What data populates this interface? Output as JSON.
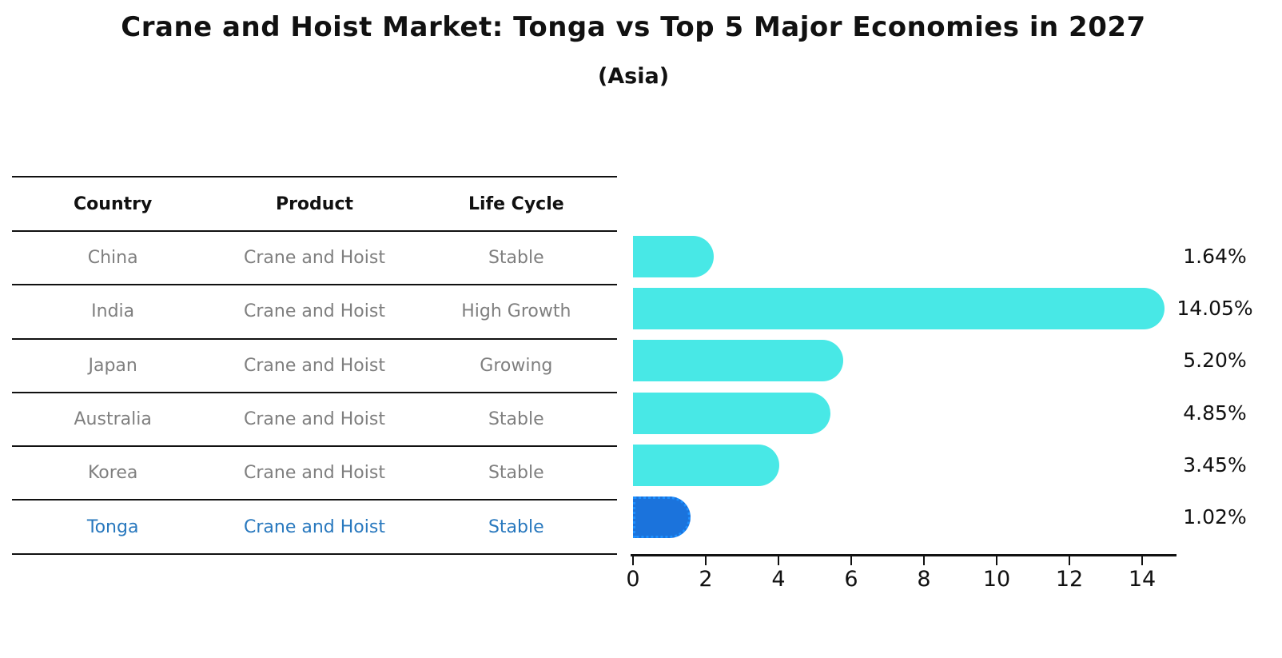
{
  "title": "Crane and Hoist Market: Tonga vs Top 5 Major Economies in 2027",
  "subtitle": "(Asia)",
  "table": {
    "headers": [
      "Country",
      "Product",
      "Life Cycle"
    ],
    "rows": [
      {
        "country": "China",
        "product": "Crane and Hoist",
        "life_cycle": "Stable",
        "highlight": false
      },
      {
        "country": "India",
        "product": "Crane and Hoist",
        "life_cycle": "High Growth",
        "highlight": false
      },
      {
        "country": "Japan",
        "product": "Crane and Hoist",
        "life_cycle": "Growing",
        "highlight": false
      },
      {
        "country": "Australia",
        "product": "Crane and Hoist",
        "life_cycle": "Stable",
        "highlight": false
      },
      {
        "country": "Korea",
        "product": "Crane and Hoist",
        "life_cycle": "Stable",
        "highlight": false
      },
      {
        "country": "Tonga",
        "product": "Crane and Hoist",
        "life_cycle": "Stable",
        "highlight": true
      }
    ]
  },
  "chart_data": {
    "type": "bar",
    "orientation": "horizontal",
    "categories": [
      "China",
      "India",
      "Japan",
      "Australia",
      "Korea",
      "Tonga"
    ],
    "values": [
      1.64,
      14.05,
      5.2,
      4.85,
      3.45,
      1.02
    ],
    "labels": [
      "1.64%",
      "14.05%",
      "5.20%",
      "4.85%",
      "3.45%",
      "1.02%"
    ],
    "highlight_category": "Tonga",
    "xticks": [
      0,
      2,
      4,
      6,
      8,
      10,
      12,
      14
    ],
    "xlim": [
      0,
      15
    ],
    "grid": false,
    "legend": false,
    "title": "Crane and Hoist Market: Tonga vs Top 5 Major Economies in 2027",
    "subtitle": "(Asia)",
    "xlabel": "",
    "ylabel": ""
  },
  "colors": {
    "bar": "#48E8E6",
    "highlight_bar": "#1B73DC",
    "highlight_border": "#1E90FF",
    "row_text": "#7f7f7f",
    "highlight_text": "#2878be",
    "line": "#111111"
  }
}
